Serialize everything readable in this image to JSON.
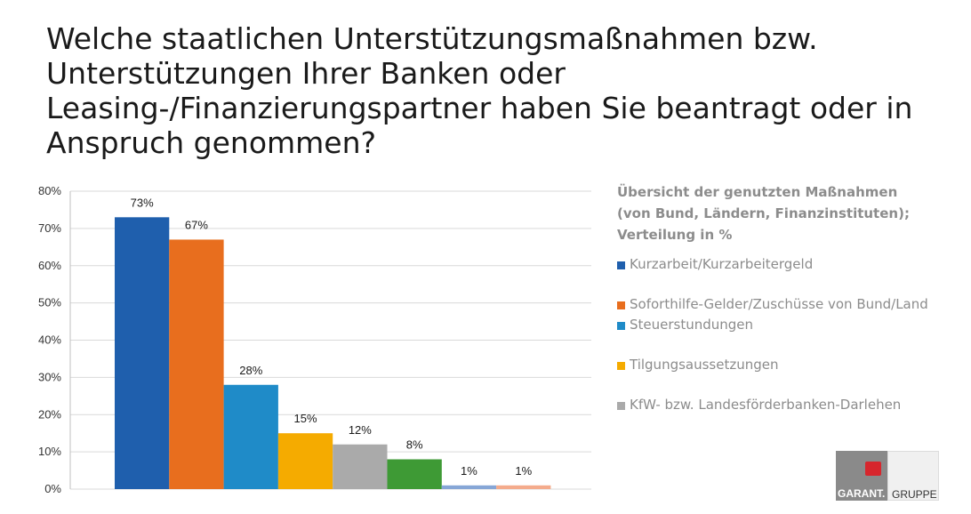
{
  "title": "Welche staatlichen Unterstützungsmaßnahmen bzw. Unterstützungen Ihrer Banken oder Leasing-/Finanzierungspartner haben Sie beantragt oder in Anspruch genommen?",
  "legend": {
    "title_lines": [
      "Übersicht der genutzten Maßnahmen",
      "(von Bund, Ländern, Finanzinstituten);",
      "Verteilung in %"
    ]
  },
  "logo": {
    "text_a": "GARANT.",
    "text_b": "GRUPPE"
  },
  "chart_data": {
    "type": "bar",
    "categories": [
      "Kurzarbeit/Kurzarbeitergeld",
      "Soforthilfe-Gelder/Zuschüsse von Bund/Land",
      "Steuerstundungen",
      "Tilgungsaussetzungen",
      "KfW- bzw. Landesförderbanken-Darlehen",
      "",
      "",
      ""
    ],
    "values": [
      73,
      67,
      28,
      15,
      12,
      8,
      1,
      1
    ],
    "data_labels": [
      "73%",
      "67%",
      "28%",
      "15%",
      "12%",
      "8%",
      "1%",
      "1%"
    ],
    "colors": [
      "#1f5fad",
      "#e86e1e",
      "#1f8bc8",
      "#f5ab00",
      "#aaaaaa",
      "#3e9a35",
      "#86a6d6",
      "#f4ab8c"
    ],
    "legend_count": 5,
    "ylim": [
      0,
      80
    ],
    "yticks": [
      "0%",
      "10%",
      "20%",
      "30%",
      "40%",
      "50%",
      "60%",
      "70%",
      "80%"
    ],
    "grid": true,
    "legend_position": "right"
  }
}
